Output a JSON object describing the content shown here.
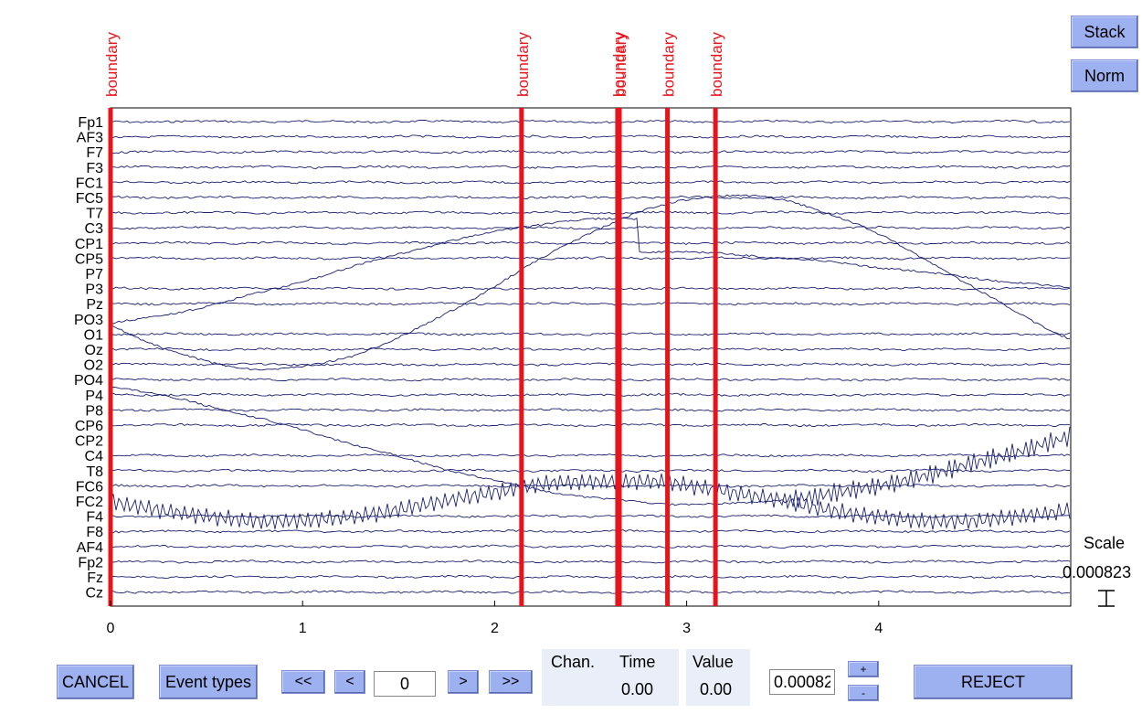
{
  "buttons": {
    "stack": "Stack",
    "norm": "Norm",
    "cancel": "CANCEL",
    "event_types": "Event types",
    "first": "<<",
    "prev": "<",
    "next": ">",
    "last": ">>",
    "plus": "+",
    "minus": "-",
    "reject": "REJECT"
  },
  "inputs": {
    "time_position": "0",
    "scale_value": "0.00082"
  },
  "info_panel": {
    "chan_label": "Chan.",
    "time_label": "Time",
    "value_label": "Value",
    "time_value": "0.00",
    "value_value": "0.00"
  },
  "scale": {
    "label": "Scale",
    "value": "0.000823"
  },
  "chart_data": {
    "type": "line",
    "x_ticks": [
      "0",
      "1",
      "2",
      "3",
      "4"
    ],
    "xlim": [
      0,
      5
    ],
    "channels": [
      "Fp1",
      "AF3",
      "F7",
      "F3",
      "FC1",
      "FC5",
      "T7",
      "C3",
      "CP1",
      "CP5",
      "P7",
      "P3",
      "Pz",
      "PO3",
      "O1",
      "Oz",
      "O2",
      "PO4",
      "P4",
      "P8",
      "CP6",
      "CP2",
      "C4",
      "T8",
      "FC6",
      "FC2",
      "F4",
      "F8",
      "AF4",
      "Fp2",
      "Fz",
      "Cz"
    ],
    "events": [
      {
        "label": "boundary",
        "time": 0.0
      },
      {
        "label": "boundary",
        "time": 2.14
      },
      {
        "label": "boundary",
        "time": 2.64
      },
      {
        "label": "boundary",
        "time": 2.65
      },
      {
        "label": "boundary",
        "time": 2.9
      },
      {
        "label": "boundary",
        "time": 3.15
      }
    ],
    "colors": {
      "trace": "#1a1f6e",
      "event": "#e8141b",
      "label": "#e8141b"
    },
    "grid": false
  }
}
